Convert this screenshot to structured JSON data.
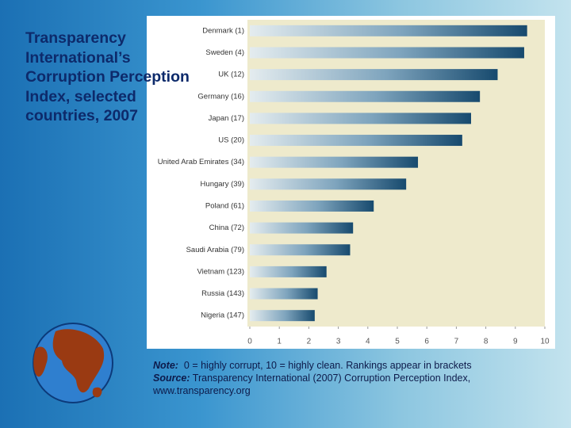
{
  "chart_data": {
    "type": "bar",
    "orientation": "horizontal",
    "title": "Transparency International’s Corruption Perception Index, selected countries, 2007",
    "categories": [
      "Denmark (1)",
      "Sweden (4)",
      "UK (12)",
      "Germany (16)",
      "Japan (17)",
      "US (20)",
      "United Arab Emirates (34)",
      "Hungary (39)",
      "Poland (61)",
      "China (72)",
      "Saudi Arabia (79)",
      "Vietnam (123)",
      "Russia (143)",
      "Nigeria (147)"
    ],
    "values": [
      9.4,
      9.3,
      8.4,
      7.8,
      7.5,
      7.2,
      5.7,
      5.3,
      4.2,
      3.5,
      3.4,
      2.6,
      2.3,
      2.2
    ],
    "color": "#174a6e",
    "xlim": [
      0,
      10
    ],
    "xticks": [
      0,
      1,
      2,
      3,
      4,
      5,
      6,
      7,
      8,
      9,
      10
    ],
    "note": {
      "label": "Note:",
      "text": "0 = highly corrupt, 10 = highly clean. Rankings appear in brackets"
    },
    "source": {
      "label": "Source:",
      "text": "Transparency International (2007) Corruption Perception Index, www.transparency.org"
    }
  }
}
